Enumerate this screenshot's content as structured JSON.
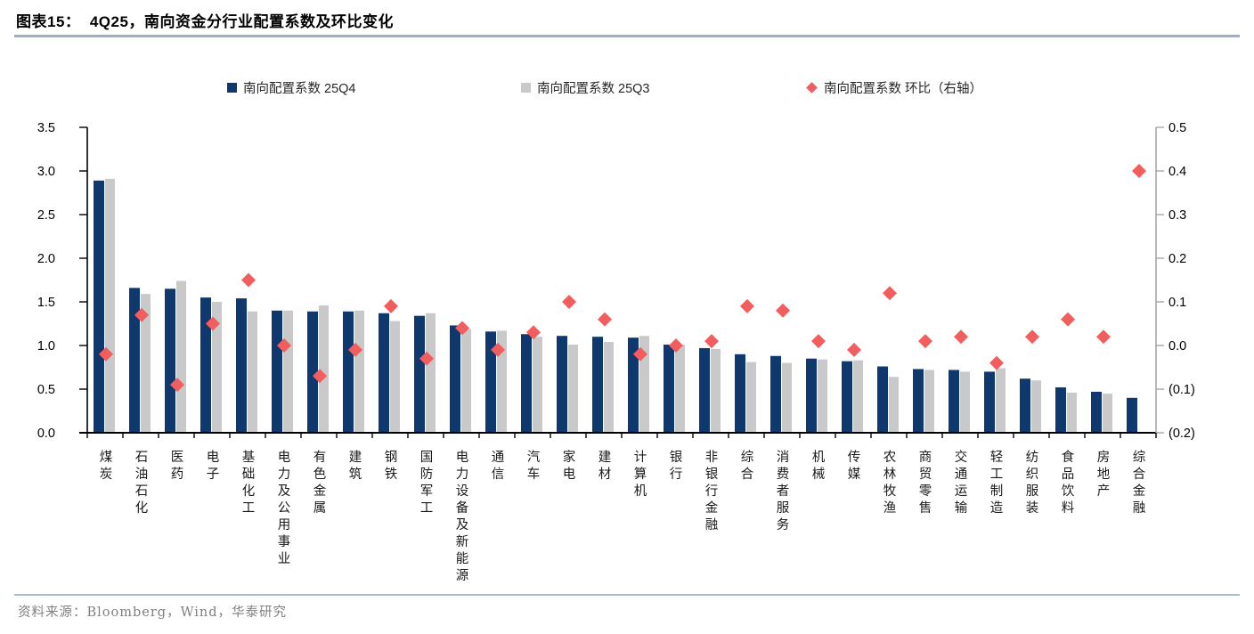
{
  "header": {
    "title": "图表15：  4Q25，南向资金分行业配置系数及环比变化"
  },
  "legend": [
    {
      "label": "南向配置系数 25Q4",
      "marker": "square",
      "color": "#0E386E"
    },
    {
      "label": "南向配置系数 25Q3",
      "marker": "square",
      "color": "#C9C9C9"
    },
    {
      "label": "南向配置系数 环比（右轴）",
      "marker": "diamond",
      "color": "#F25E5E"
    }
  ],
  "chart_data": {
    "type": "bar",
    "subtype": "grouped-bars-with-scatter-diamonds",
    "categories": [
      "煤炭",
      "石油石化",
      "医药",
      "电子",
      "基础化工",
      "电力及公用事业",
      "有色金属",
      "建筑",
      "钢铁",
      "国防军工",
      "电力设备及新能源",
      "通信",
      "汽车",
      "家电",
      "建材",
      "计算机",
      "银行",
      "非银行金融",
      "综合",
      "消费者服务",
      "机械",
      "传媒",
      "农林牧渔",
      "商贸零售",
      "交通运输",
      "轻工制造",
      "纺织服装",
      "食品饮料",
      "房地产",
      "综合金融"
    ],
    "series": [
      {
        "name": "南向配置系数 25Q4",
        "type": "bar",
        "axis": "left",
        "color": "#0E386E",
        "values": [
          2.89,
          1.66,
          1.65,
          1.55,
          1.54,
          1.4,
          1.39,
          1.39,
          1.37,
          1.34,
          1.23,
          1.16,
          1.13,
          1.11,
          1.1,
          1.09,
          1.01,
          0.97,
          0.9,
          0.88,
          0.85,
          0.82,
          0.76,
          0.73,
          0.72,
          0.7,
          0.62,
          0.52,
          0.47,
          0.4
        ]
      },
      {
        "name": "南向配置系数 25Q3",
        "type": "bar",
        "axis": "left",
        "color": "#C9C9C9",
        "values": [
          2.91,
          1.59,
          1.74,
          1.5,
          1.39,
          1.4,
          1.46,
          1.4,
          1.28,
          1.37,
          1.19,
          1.17,
          1.1,
          1.01,
          1.04,
          1.11,
          1.01,
          0.96,
          0.81,
          0.8,
          0.84,
          0.83,
          0.64,
          0.72,
          0.7,
          0.74,
          0.6,
          0.46,
          0.45,
          0.0
        ]
      },
      {
        "name": "南向配置系数 环比（右轴）",
        "type": "scatter",
        "marker": "diamond",
        "axis": "right",
        "color": "#F25E5E",
        "values": [
          -0.02,
          0.07,
          -0.09,
          0.05,
          0.15,
          0.0,
          -0.07,
          -0.01,
          0.09,
          -0.03,
          0.04,
          -0.01,
          0.03,
          0.1,
          0.06,
          -0.02,
          0.0,
          0.01,
          0.09,
          0.08,
          0.01,
          -0.01,
          0.12,
          0.01,
          0.02,
          -0.04,
          0.02,
          0.06,
          0.02,
          0.4
        ]
      }
    ],
    "left_axis": {
      "min": 0,
      "max": 3.5,
      "ticks": [
        "0.0",
        "0.5",
        "1.0",
        "1.5",
        "2.0",
        "2.5",
        "3.0",
        "3.5"
      ]
    },
    "right_axis": {
      "min": -0.2,
      "max": 0.5,
      "ticks": [
        "(0.2)",
        "(0.1)",
        "0.0",
        "0.1",
        "0.2",
        "0.3",
        "0.4",
        "0.5"
      ]
    },
    "grid": false,
    "legend_position": "top",
    "title": "4Q25，南向资金分行业配置系数及环比变化"
  },
  "footer": {
    "source": "资料来源：Bloomberg，Wind，华泰研究"
  },
  "colors": {
    "bar_q4": "#0E386E",
    "bar_q3": "#C9C9C9",
    "diamond": "#F25E5E",
    "axis_left": "#000000",
    "axis_right": "#A6A6A6",
    "rule": "#9AAEC7",
    "source_text": "#7F7F7F"
  }
}
